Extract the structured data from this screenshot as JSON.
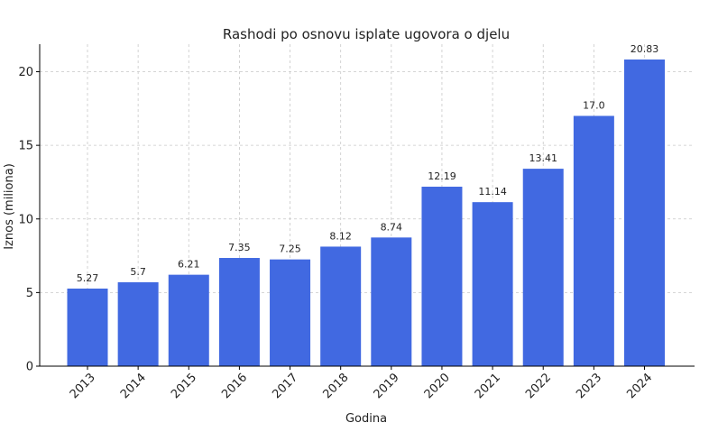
{
  "chart_data": {
    "type": "bar",
    "title": "Rashodi po osnovu isplate ugovora o djelu",
    "xlabel": "Godina",
    "ylabel": "Iznos (miliona)",
    "categories": [
      "2013",
      "2014",
      "2015",
      "2016",
      "2017",
      "2018",
      "2019",
      "2020",
      "2021",
      "2022",
      "2023",
      "2024"
    ],
    "values": [
      5.27,
      5.7,
      6.21,
      7.35,
      7.25,
      8.12,
      8.74,
      12.19,
      11.14,
      13.41,
      17.0,
      20.83
    ],
    "value_labels": [
      "5.27",
      "5.7",
      "6.21",
      "7.35",
      "7.25",
      "8.12",
      "8.74",
      "12.19",
      "11.14",
      "13.41",
      "17.0",
      "20.83"
    ],
    "ylim": [
      0,
      21.87
    ],
    "yticks": [
      0,
      5,
      10,
      15,
      20
    ],
    "grid": true,
    "bar_color": "#4169e1"
  }
}
